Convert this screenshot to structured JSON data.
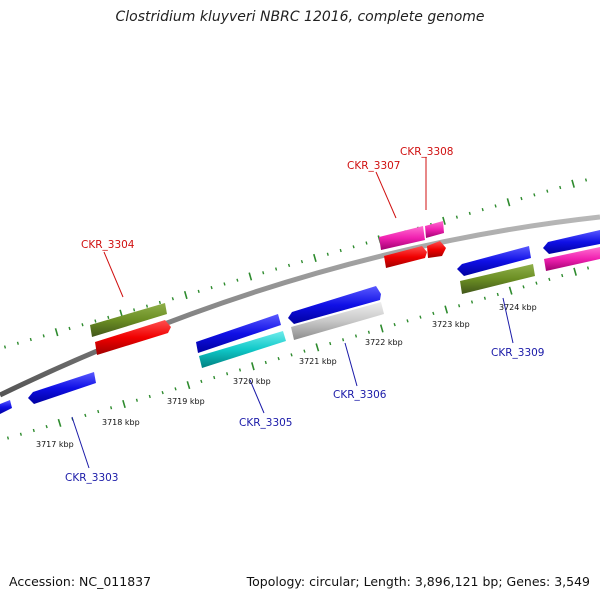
{
  "title": "Clostridium kluyveri NBRC 12016, complete genome",
  "footer": {
    "accession": "Accession: NC_011837",
    "summary": "Topology: circular; Length: 3,896,121 bp; Genes: 3,549"
  },
  "colors": {
    "backbone": "#8c8c8c",
    "outer_ticks": "#2e8b2e",
    "inner_ticks": "#2e8b2e",
    "label_forward": "#d01010",
    "label_reverse": "#1a1aa8"
  },
  "kbp_labels": [
    "3717 kbp",
    "3718 kbp",
    "3719 kbp",
    "3720 kbp",
    "3721 kbp",
    "3722 kbp",
    "3723 kbp",
    "3724 kbp"
  ],
  "gene_labels": [
    {
      "name": "CKR_3303",
      "strand": "reverse"
    },
    {
      "name": "CKR_3304",
      "strand": "forward"
    },
    {
      "name": "CKR_3305",
      "strand": "reverse"
    },
    {
      "name": "CKR_3306",
      "strand": "reverse"
    },
    {
      "name": "CKR_3307",
      "strand": "forward"
    },
    {
      "name": "CKR_3308",
      "strand": "forward"
    },
    {
      "name": "CKR_3309",
      "strand": "reverse"
    }
  ]
}
